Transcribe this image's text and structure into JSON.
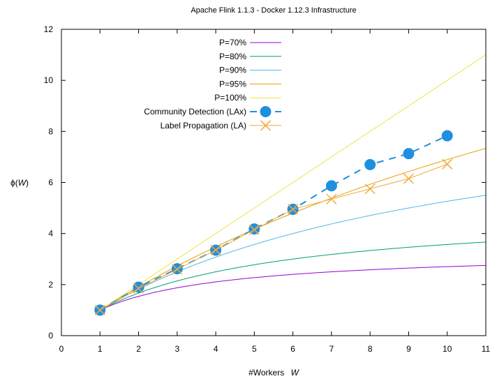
{
  "chart_data": {
    "type": "line",
    "title": "Apache Flink 1.1.3 - Docker 1.12.3 Infrastructure",
    "xlabel": "#Workers",
    "xlabel_var": "W",
    "ylabel": "ϕ(",
    "ylabel_var": "W",
    "ylabel_suffix": ")",
    "xlim": [
      0,
      11
    ],
    "ylim": [
      0,
      12
    ],
    "xticks": [
      0,
      1,
      2,
      3,
      4,
      5,
      6,
      7,
      8,
      9,
      10,
      11
    ],
    "yticks": [
      0,
      2,
      4,
      6,
      8,
      10,
      12
    ],
    "grid": false,
    "legend_position": "top-center",
    "series": [
      {
        "name": "P=70%",
        "kind": "amdahl",
        "p": 0.7,
        "color": "#9400d3"
      },
      {
        "name": "P=80%",
        "kind": "amdahl",
        "p": 0.8,
        "color": "#009e73"
      },
      {
        "name": "P=90%",
        "kind": "amdahl",
        "p": 0.9,
        "color": "#56b4e9"
      },
      {
        "name": "P=95%",
        "kind": "amdahl",
        "p": 0.95,
        "color": "#e69f00"
      },
      {
        "name": "P=100%",
        "kind": "amdahl",
        "p": 1.0,
        "color": "#f0e442"
      },
      {
        "name": "Community Detection (LAx)",
        "kind": "points",
        "marker": "circle",
        "dashed": true,
        "color": "#1f8fe0",
        "x": [
          1,
          2,
          3,
          4,
          5,
          6,
          7,
          8,
          9,
          10
        ],
        "y": [
          1.0,
          1.9,
          2.62,
          3.35,
          4.18,
          4.95,
          5.87,
          6.7,
          7.13,
          7.83
        ]
      },
      {
        "name": "Label Propagation (LA)",
        "kind": "points",
        "marker": "cross",
        "dashed": false,
        "color": "#f2a93b",
        "x": [
          1,
          2,
          3,
          4,
          5,
          6,
          7,
          8,
          9,
          10
        ],
        "y": [
          1.0,
          1.85,
          2.6,
          3.35,
          4.15,
          4.95,
          5.35,
          5.75,
          6.15,
          6.72
        ]
      }
    ]
  }
}
